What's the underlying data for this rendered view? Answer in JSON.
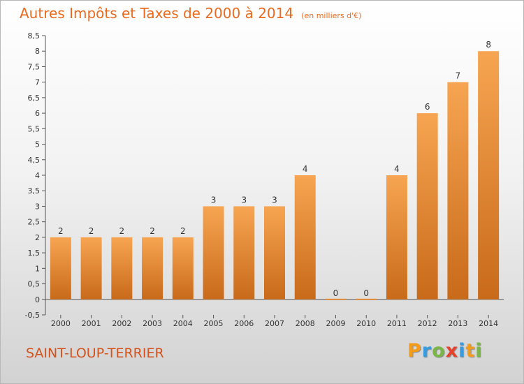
{
  "title": "Autres Impôts et Taxes de 2000 à 2014",
  "title_unit": "(en milliers d'€)",
  "place": "SAINT-LOUP-TERRIER",
  "brand": {
    "letters": [
      "P",
      "r",
      "o",
      "x",
      "i",
      "t",
      "i"
    ],
    "colors": [
      "#f39c1c",
      "#3a9bdc",
      "#7ab648",
      "#e8412b",
      "#3a9bdc",
      "#f39c1c",
      "#7ab648"
    ]
  },
  "colors": {
    "bar_top": "#f7a552",
    "bar_bottom": "#c86a1a",
    "title": "#ea6a1e"
  },
  "chart_data": {
    "type": "bar",
    "title": "Autres Impôts et Taxes de 2000 à 2014",
    "ylabel": "",
    "xlabel": "",
    "categories": [
      "2000",
      "2001",
      "2002",
      "2003",
      "2004",
      "2005",
      "2006",
      "2007",
      "2008",
      "2009",
      "2010",
      "2011",
      "2012",
      "2013",
      "2014"
    ],
    "values": [
      2,
      2,
      2,
      2,
      2,
      3,
      3,
      3,
      4,
      0,
      0,
      4,
      6,
      7,
      8
    ],
    "data_labels": [
      "2",
      "2",
      "2",
      "2",
      "2",
      "3",
      "3",
      "3",
      "4",
      "0",
      "0",
      "4",
      "6",
      "7",
      "8"
    ],
    "ylim": [
      -0.5,
      8.5
    ],
    "yticks": [
      -0.5,
      0,
      0.5,
      1,
      1.5,
      2,
      2.5,
      3,
      3.5,
      4,
      4.5,
      5,
      5.5,
      6,
      6.5,
      7,
      7.5,
      8,
      8.5
    ],
    "ytick_labels": [
      "-0,5",
      "0",
      "0,5",
      "1",
      "1,5",
      "2",
      "2,5",
      "3",
      "3,5",
      "4",
      "4,5",
      "5",
      "5,5",
      "6",
      "6,5",
      "7",
      "7,5",
      "8",
      "8,5"
    ],
    "grid": false
  }
}
